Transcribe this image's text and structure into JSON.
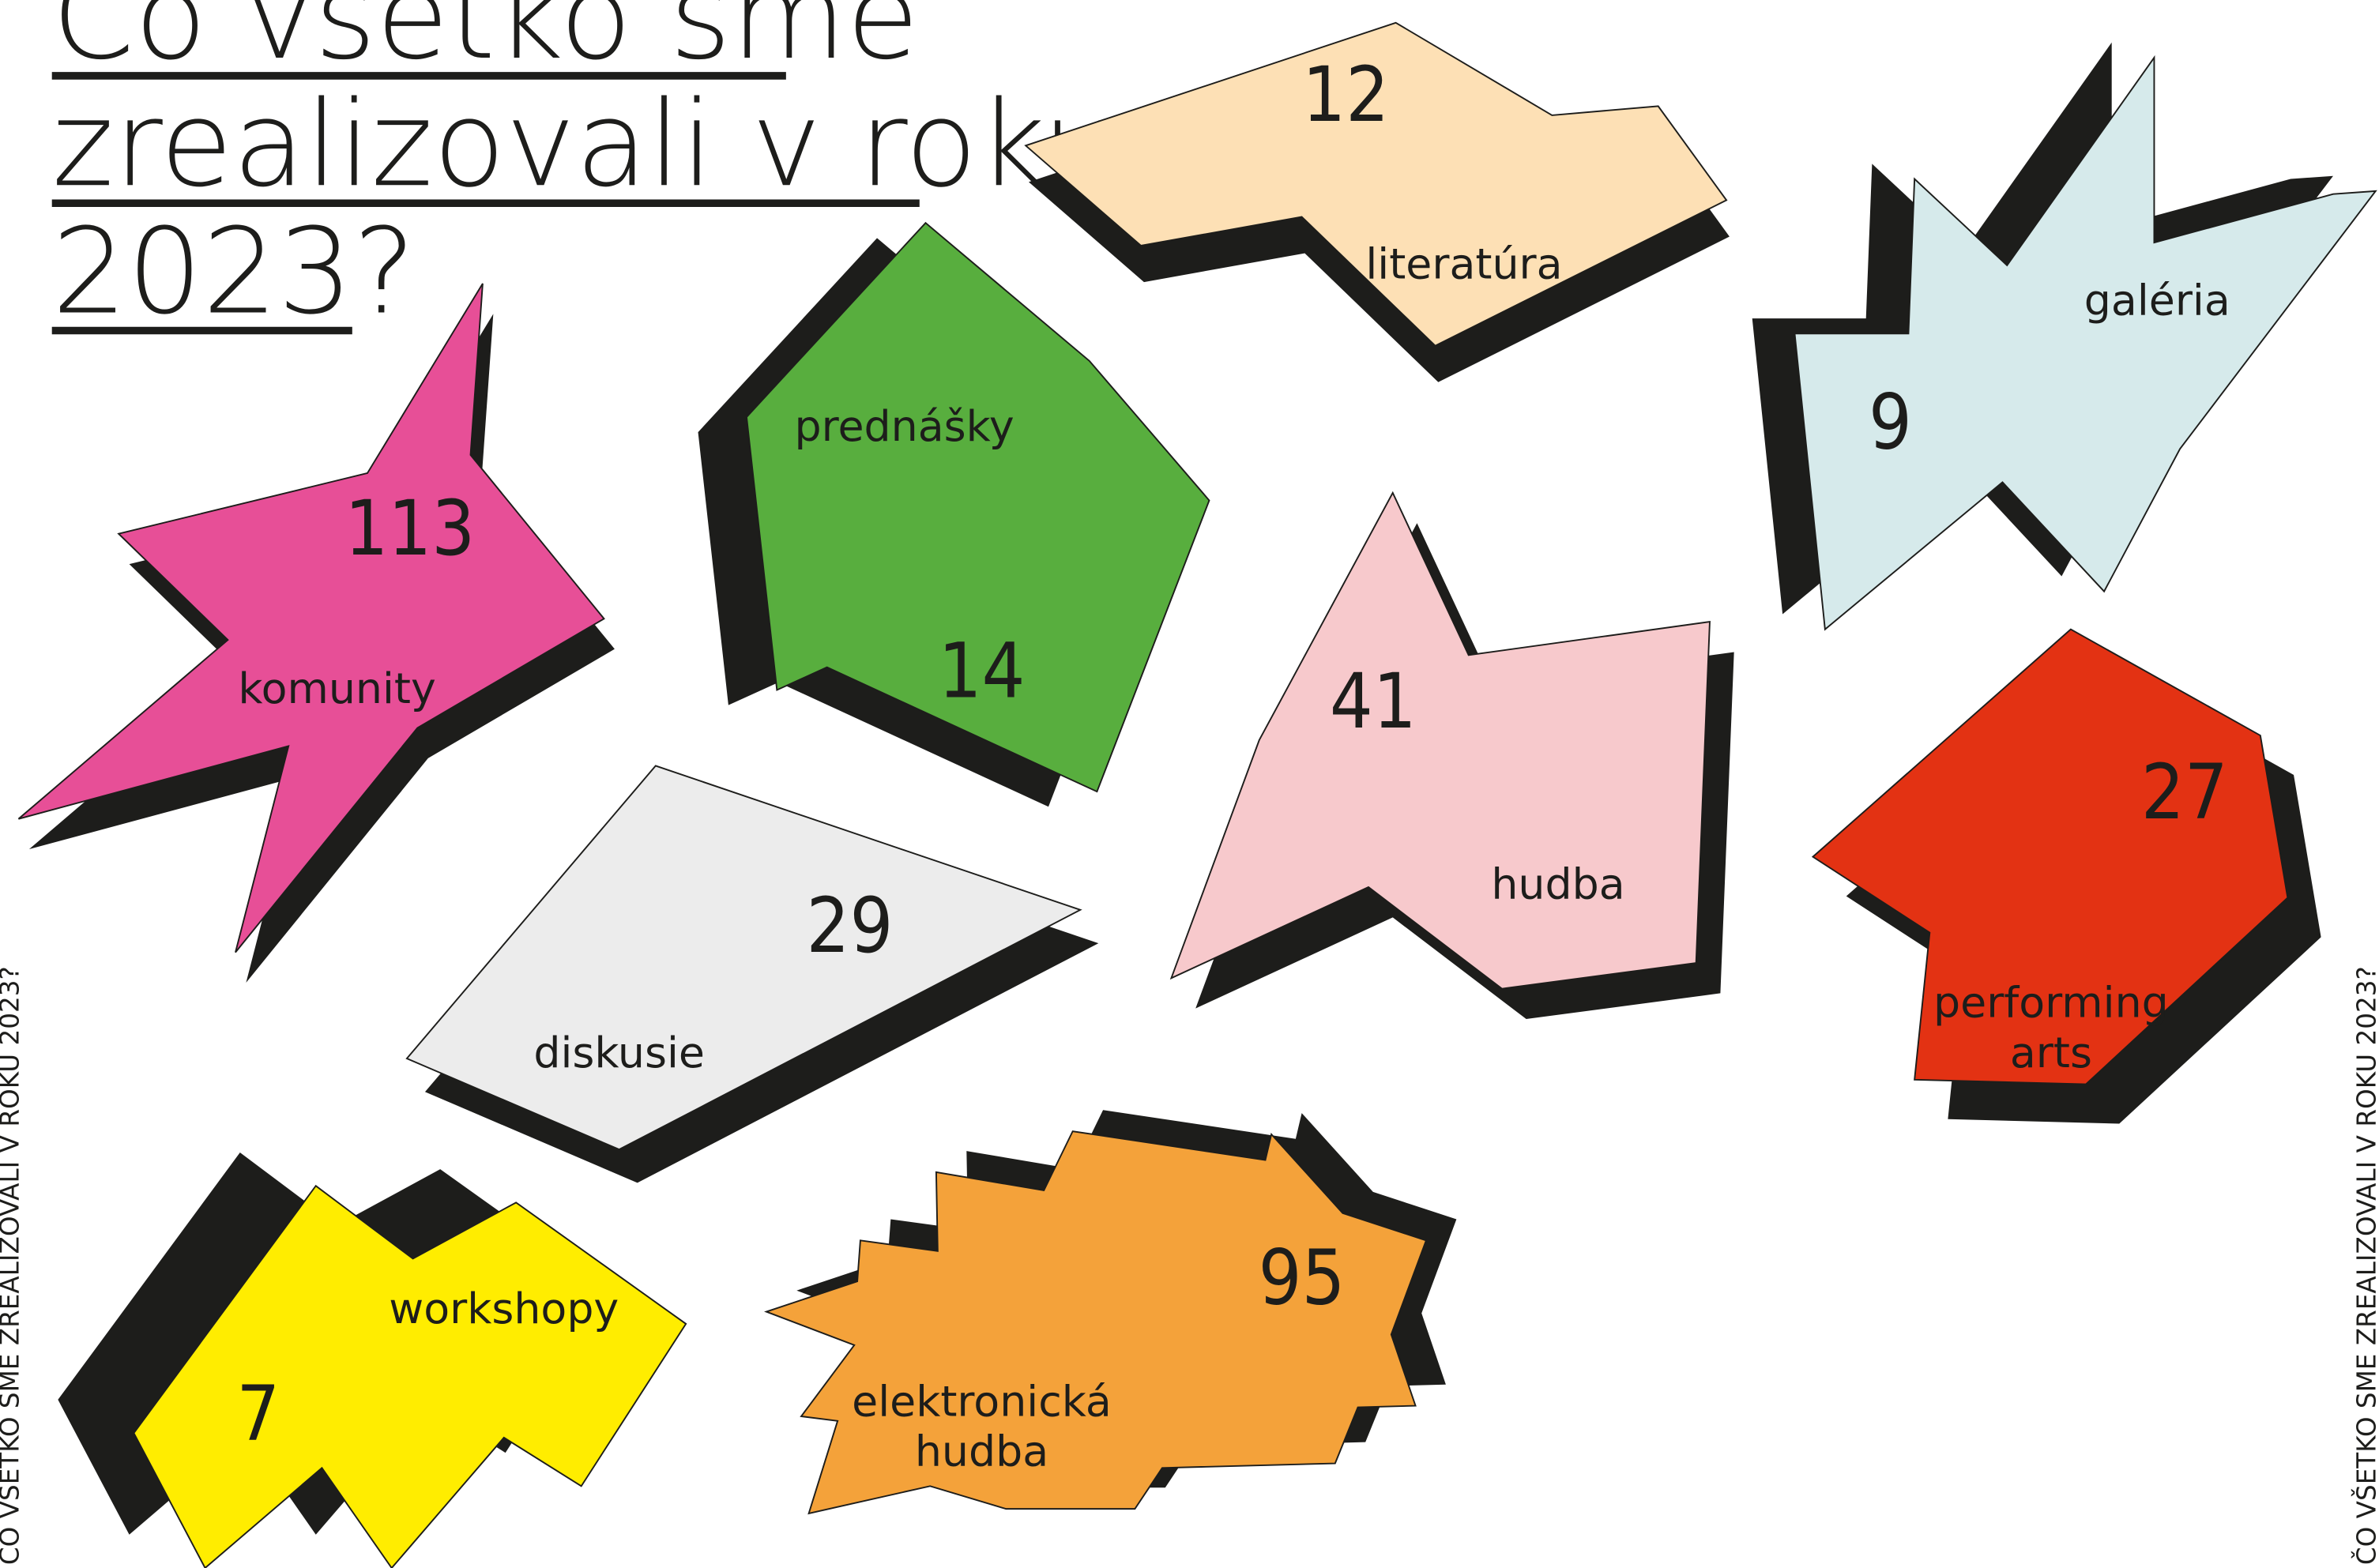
{
  "title": {
    "lines": [
      "Čo všetko sme",
      "zrealizovali v roku",
      "2023?"
    ]
  },
  "side_text": "ČO VŠETKO SME ZREALIZOVALI V ROKU 2023?",
  "items": [
    {
      "number": 12,
      "label": [
        "literatúra"
      ]
    },
    {
      "number": 9,
      "label": [
        "galéria"
      ]
    },
    {
      "number": 113,
      "label": [
        "komunity"
      ]
    },
    {
      "number": 14,
      "label": [
        "prednášky"
      ]
    },
    {
      "number": 41,
      "label": [
        "hudba"
      ]
    },
    {
      "number": 29,
      "label": [
        "diskusie"
      ]
    },
    {
      "number": 27,
      "label": [
        "performing",
        "arts"
      ]
    },
    {
      "number": 7,
      "label": [
        "workshopy"
      ]
    },
    {
      "number": 95,
      "label": [
        "elektronická",
        "hudba"
      ]
    }
  ]
}
